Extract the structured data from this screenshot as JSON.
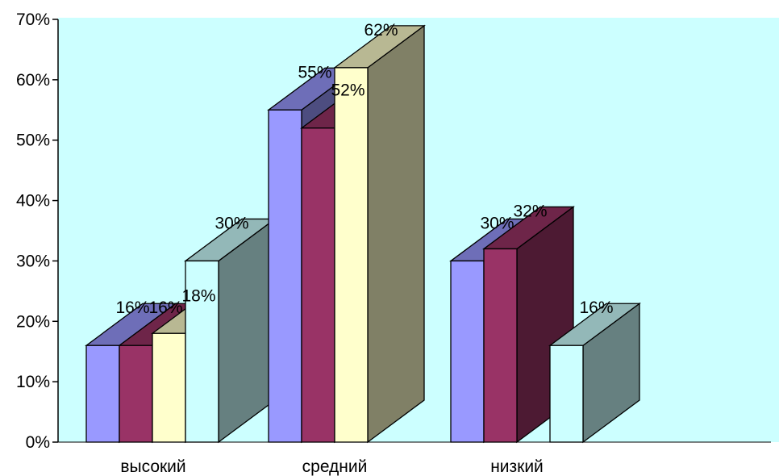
{
  "chart_data": {
    "type": "bar",
    "title": "",
    "xlabel": "",
    "ylabel": "",
    "categories": [
      "высокий",
      "средний",
      "низкий"
    ],
    "series": [
      {
        "values": [
          16,
          55,
          30
        ],
        "color": "#9999FF",
        "labels": [
          "16%",
          "55%",
          "30%"
        ]
      },
      {
        "values": [
          16,
          52,
          32
        ],
        "color": "#993366",
        "labels": [
          "16%",
          "52%",
          "32%"
        ]
      },
      {
        "values": [
          18,
          62,
          null
        ],
        "color": "#FFFFCC",
        "labels": [
          "18%",
          "62%",
          ""
        ]
      },
      {
        "values": [
          30,
          null,
          16
        ],
        "color": "#CCFFFF",
        "labels": [
          "30%",
          "",
          "16%"
        ]
      }
    ],
    "ylim": [
      0,
      70
    ],
    "yticks": [
      "0%",
      "10%",
      "20%",
      "30%",
      "40%",
      "50%",
      "60%",
      "70%"
    ],
    "plot_background": "#CCFFFF",
    "grid": false,
    "legend": "none"
  }
}
